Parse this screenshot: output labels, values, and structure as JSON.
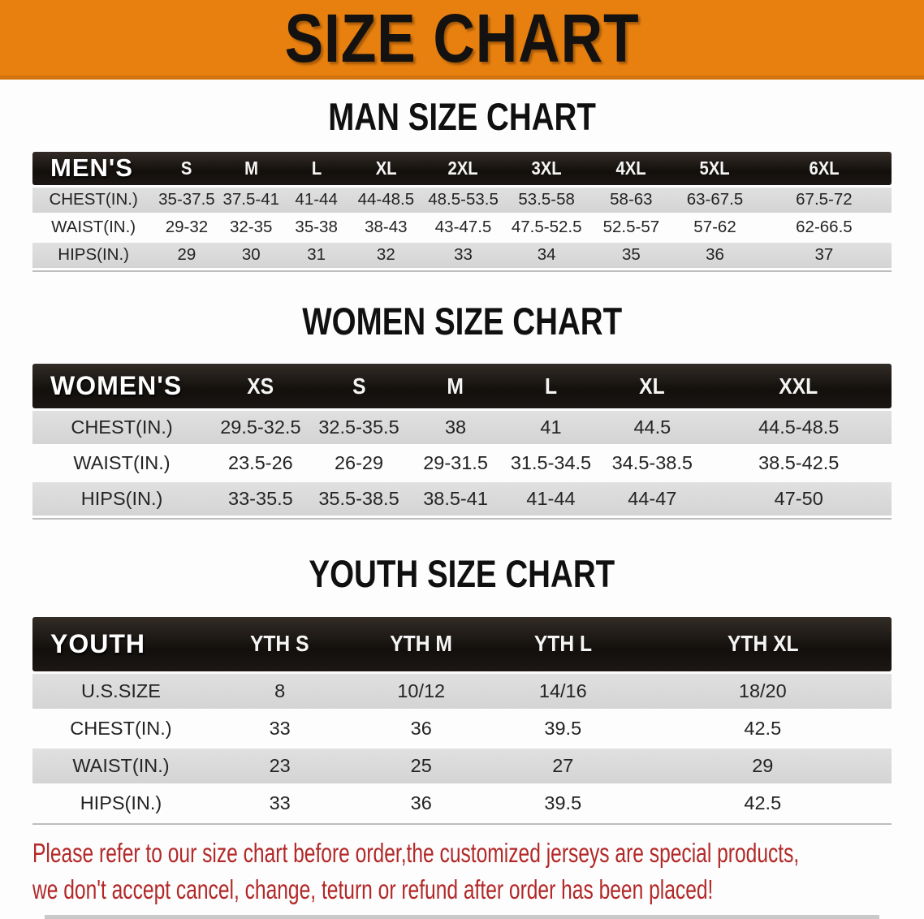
{
  "banner": {
    "title": "SIZE CHART"
  },
  "colors": {
    "banner_orange": "#E8800F",
    "header_black": "#16120f",
    "row_gray": "#d9d9d9",
    "note_red": "#b32828"
  },
  "tables": {
    "men": {
      "heading": "MAN SIZE CHART",
      "header_label": "MEN'S",
      "sizes": [
        "S",
        "M",
        "L",
        "XL",
        "2XL",
        "3XL",
        "4XL",
        "5XL",
        "6XL"
      ],
      "col_widths": [
        "14.2%",
        "7.5%",
        "7.5%",
        "7.7%",
        "8.5%",
        "9.5%",
        "9.9%",
        "9.8%",
        "9.7%",
        "15.7%"
      ],
      "rows": [
        {
          "label": "CHEST(IN.)",
          "shade": "gray",
          "values": [
            "35-37.5",
            "37.5-41",
            "41-44",
            "44-48.5",
            "48.5-53.5",
            "53.5-58",
            "58-63",
            "63-67.5",
            "67.5-72"
          ]
        },
        {
          "label": "WAIST(IN.)",
          "shade": "white",
          "values": [
            "29-32",
            "32-35",
            "35-38",
            "38-43",
            "43-47.5",
            "47.5-52.5",
            "52.5-57",
            "57-62",
            "62-66.5"
          ]
        },
        {
          "label": "HIPS(IN.)",
          "shade": "gray",
          "values": [
            "29",
            "30",
            "31",
            "32",
            "33",
            "34",
            "35",
            "36",
            "37"
          ]
        }
      ]
    },
    "women": {
      "heading": "WOMEN SIZE CHART",
      "header_label": "WOMEN'S",
      "sizes": [
        "XS",
        "S",
        "M",
        "L",
        "XL",
        "XXL"
      ],
      "col_widths": [
        "20.8%",
        "11.5%",
        "11.4%",
        "11.1%",
        "11.1%",
        "12.5%",
        "21.6%"
      ],
      "rows": [
        {
          "label": "CHEST(IN.)",
          "shade": "gray",
          "values": [
            "29.5-32.5",
            "32.5-35.5",
            "38",
            "41",
            "44.5",
            "44.5-48.5"
          ]
        },
        {
          "label": "WAIST(IN.)",
          "shade": "white",
          "values": [
            "23.5-26",
            "26-29",
            "29-31.5",
            "31.5-34.5",
            "34.5-38.5",
            "38.5-42.5"
          ]
        },
        {
          "label": "HIPS(IN.)",
          "shade": "gray",
          "values": [
            "33-35.5",
            "35.5-38.5",
            "38.5-41",
            "41-44",
            "44-47",
            "47-50"
          ]
        }
      ]
    },
    "youth": {
      "heading": "YOUTH SIZE CHART",
      "header_label": "YOUTH",
      "sizes": [
        "YTH S",
        "YTH M",
        "YTH L",
        "YTH XL"
      ],
      "col_widths": [
        "20.6%",
        "16.4%",
        "16.5%",
        "16.5%",
        "30%"
      ],
      "rows": [
        {
          "label": "U.S.SIZE",
          "shade": "gray",
          "values": [
            "8",
            "10/12",
            "14/16",
            "18/20"
          ]
        },
        {
          "label": "CHEST(IN.)",
          "shade": "white",
          "values": [
            "33",
            "36",
            "39.5",
            "42.5"
          ]
        },
        {
          "label": "WAIST(IN.)",
          "shade": "gray",
          "values": [
            "23",
            "25",
            "27",
            "29"
          ]
        },
        {
          "label": "HIPS(IN.)",
          "shade": "white",
          "values": [
            "33",
            "36",
            "39.5",
            "42.5"
          ]
        }
      ]
    }
  },
  "note": {
    "line1": "Please refer to our size chart before order,the customized jerseys are special products,",
    "line2": "we don't accept cancel, change, teturn or refund after order has been placed!"
  }
}
